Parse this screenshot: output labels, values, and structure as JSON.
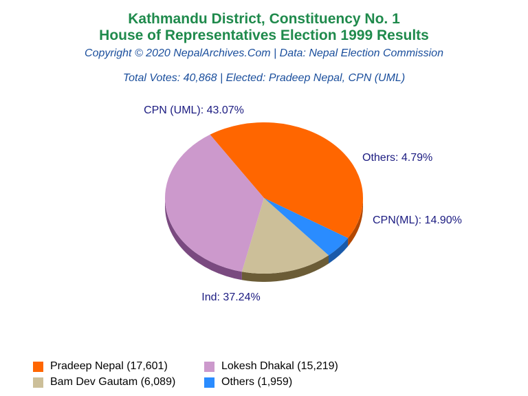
{
  "header": {
    "title_line1": "Kathmandu District, Constituency No. 1",
    "title_line2": "House of Representatives Election 1999 Results",
    "copyright": "Copyright © 2020 NepalArchives.Com | Data: Nepal Election Commission",
    "summary": "Total Votes: 40,868 | Elected: Pradeep Nepal, CPN (UML)"
  },
  "chart_data": {
    "type": "pie",
    "slices": [
      {
        "label": "CPN (UML): 43.07%",
        "value": 43.07,
        "color": "#ff6600",
        "side_color": "#b34700",
        "legend": "Pradeep Nepal (17,601)"
      },
      {
        "label": "Ind: 37.24%",
        "value": 37.24,
        "color": "#cc99cc",
        "side_color": "#7a4a80",
        "legend": "Lokesh Dhakal (15,219)"
      },
      {
        "label": "CPN(ML): 14.90%",
        "value": 14.9,
        "color": "#ccbf99",
        "side_color": "#6b5c36",
        "legend": "Bam Dev Gautam (6,089)"
      },
      {
        "label": "Others: 4.79%",
        "value": 4.79,
        "color": "#2a8cff",
        "side_color": "#1a5aaa",
        "legend": "Others (1,959)"
      }
    ]
  }
}
